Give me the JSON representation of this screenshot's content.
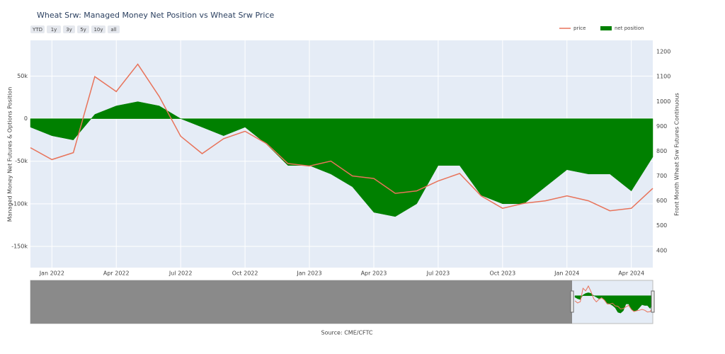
{
  "chart_data": {
    "type": "area-line",
    "title": "Wheat Srw: Managed Money Net Position vs Wheat Srw Price",
    "y_label": "Managed Money Net Futures & Options Position",
    "y2_label": "Front Month Wheat Srw Futures Continuous",
    "source": "Source: CME/CFTC",
    "buttons": [
      "YTD",
      "1y",
      "3y",
      "5y",
      "10y",
      "all"
    ],
    "x": [
      "2021-12",
      "2022-01",
      "2022-02",
      "2022-03",
      "2022-04",
      "2022-05",
      "2022-06",
      "2022-07",
      "2022-08",
      "2022-09",
      "2022-10",
      "2022-11",
      "2022-12",
      "2023-01",
      "2023-02",
      "2023-03",
      "2023-04",
      "2023-05",
      "2023-06",
      "2023-07",
      "2023-08",
      "2023-09",
      "2023-10",
      "2023-11",
      "2023-12",
      "2024-01",
      "2024-02",
      "2024-03",
      "2024-04",
      "2024-05"
    ],
    "xlim": [
      "2021-12",
      "2024-05"
    ],
    "xticks": [
      {
        "value": "2022-01",
        "label": "Jan 2022"
      },
      {
        "value": "2022-04",
        "label": "Apr 2022"
      },
      {
        "value": "2022-07",
        "label": "Jul 2022"
      },
      {
        "value": "2022-10",
        "label": "Oct 2022"
      },
      {
        "value": "2023-01",
        "label": "Jan 2023"
      },
      {
        "value": "2023-04",
        "label": "Apr 2023"
      },
      {
        "value": "2023-07",
        "label": "Jul 2023"
      },
      {
        "value": "2023-10",
        "label": "Oct 2023"
      },
      {
        "value": "2024-01",
        "label": "Jan 2024"
      },
      {
        "value": "2024-04",
        "label": "Apr 2024"
      }
    ],
    "series": [
      {
        "name": "price",
        "color": "#e8735a",
        "axis": "y2",
        "values": [
          814,
          766,
          794,
          1100,
          1040,
          1150,
          1020,
          860,
          790,
          850,
          880,
          830,
          750,
          740,
          760,
          700,
          690,
          630,
          640,
          680,
          710,
          620,
          570,
          590,
          600,
          620,
          600,
          560,
          570,
          650
        ]
      },
      {
        "name": "net position",
        "color": "#008000",
        "values": [
          -10000,
          -20000,
          -25000,
          5000,
          15000,
          20000,
          15000,
          0,
          -10000,
          -20000,
          -10000,
          -30000,
          -55000,
          -55000,
          -65000,
          -80000,
          -110000,
          -115000,
          -100000,
          -55000,
          -55000,
          -90000,
          -100000,
          -100000,
          -80000,
          -60000,
          -65000,
          -65000,
          -85000,
          -45000
        ]
      }
    ],
    "ylim": [
      -175000,
      92000
    ],
    "yticks": [
      {
        "value": -150000,
        "label": "-150k"
      },
      {
        "value": -100000,
        "label": "-100k"
      },
      {
        "value": -50000,
        "label": "-50k"
      },
      0,
      {
        "value": 50000,
        "label": "50k"
      }
    ],
    "y2lim": [
      331,
      1246
    ],
    "y2ticks": [
      400,
      500,
      600,
      700,
      800,
      900,
      1000,
      1100,
      1200
    ],
    "grid": true,
    "legend": "top-right"
  }
}
